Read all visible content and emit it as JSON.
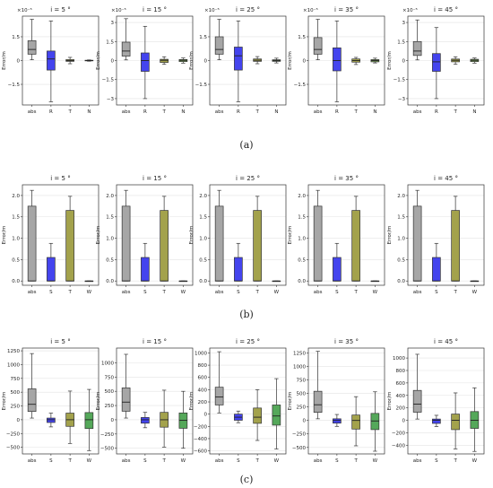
{
  "captions": [
    "(a)",
    "(b)",
    "(c)"
  ],
  "colors": {
    "abs": "#a6a6a6",
    "R": "#4444ee",
    "S": "#4444ee",
    "T": "#a3a24c",
    "N": "#7ea85a",
    "W": "#55a85a",
    "box_edge": "#333333",
    "median": "#222222",
    "grid": "#e3e3e3"
  },
  "chart_data": [
    {
      "type": "box",
      "panel": "a1",
      "title": "i = 5 °",
      "ylabel": "Error/m",
      "sci_label": "×10⁻⁵",
      "categories": [
        "abs",
        "R",
        "T",
        "N"
      ],
      "ylim": [
        -2.8,
        2.8
      ],
      "yticks": [
        -1.5,
        0,
        1.5
      ],
      "ytick_labels": [
        "−1.5",
        "0",
        "1.5"
      ],
      "boxes": [
        {
          "q1": 0.4,
          "median": 0.7,
          "q3": 1.25,
          "whislo": 0.05,
          "whishi": 2.6
        },
        {
          "q1": -0.6,
          "median": 0.1,
          "q3": 0.6,
          "whislo": -2.6,
          "whishi": 2.5
        },
        {
          "q1": -0.05,
          "median": 0.0,
          "q3": 0.06,
          "whislo": -0.2,
          "whishi": 0.2
        },
        {
          "q1": -0.02,
          "median": 0.0,
          "q3": 0.02,
          "whislo": -0.04,
          "whishi": 0.04
        }
      ]
    },
    {
      "type": "box",
      "panel": "a2",
      "title": "i = 15 °",
      "ylabel": "Error/m",
      "sci_label": "×10⁻⁵",
      "categories": [
        "abs",
        "R",
        "T",
        "N"
      ],
      "ylim": [
        -3.5,
        3.5
      ],
      "yticks": [
        -3,
        -1.5,
        0,
        1.5,
        3
      ],
      "ytick_labels": [
        "−3",
        "−1.5",
        "0",
        "1.5",
        "3"
      ],
      "boxes": [
        {
          "q1": 0.35,
          "median": 0.75,
          "q3": 1.45,
          "whislo": 0.05,
          "whishi": 3.3
        },
        {
          "q1": -0.85,
          "median": 0.0,
          "q3": 0.6,
          "whislo": -3.0,
          "whishi": 2.7
        },
        {
          "q1": -0.15,
          "median": 0.02,
          "q3": 0.1,
          "whislo": -0.3,
          "whishi": 0.3
        },
        {
          "q1": -0.08,
          "median": 0.02,
          "q3": 0.08,
          "whislo": -0.2,
          "whishi": 0.2
        }
      ]
    },
    {
      "type": "box",
      "panel": "a3",
      "title": "i = 25 °",
      "ylabel": "Error/m",
      "sci_label": "×10⁻⁵",
      "categories": [
        "abs",
        "R",
        "T",
        "N"
      ],
      "ylim": [
        -2.8,
        2.8
      ],
      "yticks": [
        -1.5,
        0,
        1.5
      ],
      "ytick_labels": [
        "−1.5",
        "0",
        "1.5"
      ],
      "boxes": [
        {
          "q1": 0.4,
          "median": 0.7,
          "q3": 1.5,
          "whislo": 0.05,
          "whishi": 2.6
        },
        {
          "q1": -0.6,
          "median": 0.3,
          "q3": 0.85,
          "whislo": -2.6,
          "whishi": 2.5
        },
        {
          "q1": -0.05,
          "median": 0.02,
          "q3": 0.1,
          "whislo": -0.2,
          "whishi": 0.25
        },
        {
          "q1": -0.05,
          "median": 0.0,
          "q3": 0.05,
          "whislo": -0.15,
          "whishi": 0.15
        }
      ]
    },
    {
      "type": "box",
      "panel": "a4",
      "title": "i = 35 °",
      "ylabel": "Error/m",
      "sci_label": "×10⁻⁵",
      "categories": [
        "abs",
        "R",
        "T",
        "N"
      ],
      "ylim": [
        -2.8,
        2.8
      ],
      "yticks": [
        -1.5,
        0,
        1.5
      ],
      "ytick_labels": [
        "−1.5",
        "0",
        "1.5"
      ],
      "boxes": [
        {
          "q1": 0.4,
          "median": 0.7,
          "q3": 1.45,
          "whislo": 0.05,
          "whishi": 2.6
        },
        {
          "q1": -0.65,
          "median": 0.0,
          "q3": 0.8,
          "whislo": -2.6,
          "whishi": 2.5
        },
        {
          "q1": -0.1,
          "median": 0.0,
          "q3": 0.1,
          "whislo": -0.25,
          "whishi": 0.2
        },
        {
          "q1": -0.08,
          "median": 0.0,
          "q3": 0.06,
          "whislo": -0.15,
          "whishi": 0.15
        }
      ]
    },
    {
      "type": "box",
      "panel": "a5",
      "title": "i = 45 °",
      "ylabel": "Error/m",
      "sci_label": "×10⁻⁵",
      "categories": [
        "abs",
        "R",
        "T",
        "N"
      ],
      "ylim": [
        -3.5,
        3.5
      ],
      "yticks": [
        -3,
        -1.5,
        0,
        1.5,
        3
      ],
      "ytick_labels": [
        "−3",
        "−1.5",
        "0",
        "1.5",
        "3"
      ],
      "boxes": [
        {
          "q1": 0.4,
          "median": 0.75,
          "q3": 1.5,
          "whislo": 0.05,
          "whishi": 3.2
        },
        {
          "q1": -0.85,
          "median": -0.1,
          "q3": 0.55,
          "whislo": -3.0,
          "whishi": 2.6
        },
        {
          "q1": -0.1,
          "median": 0.02,
          "q3": 0.12,
          "whislo": -0.3,
          "whishi": 0.3
        },
        {
          "q1": -0.08,
          "median": 0.02,
          "q3": 0.1,
          "whislo": -0.2,
          "whishi": 0.2
        }
      ]
    },
    {
      "type": "box",
      "panel": "b1",
      "title": "i = 5 °",
      "ylabel": "Error/m",
      "categories": [
        "abs",
        "S",
        "T",
        "W"
      ],
      "ylim": [
        -0.1,
        2.25
      ],
      "yticks": [
        0,
        0.5,
        1,
        1.5,
        2
      ],
      "ytick_labels": [
        "0.0",
        "0.5",
        "1.0",
        "1.5",
        "2.0"
      ],
      "boxes": [
        {
          "q1": 0.0,
          "median": 0.0,
          "q3": 1.75,
          "whislo": 0.0,
          "whishi": 2.12
        },
        {
          "q1": 0.0,
          "median": 0.0,
          "q3": 0.55,
          "whislo": 0.0,
          "whishi": 0.88
        },
        {
          "q1": 0.0,
          "median": 0.0,
          "q3": 1.65,
          "whislo": 0.0,
          "whishi": 1.98
        },
        {
          "q1": 0.0,
          "median": 0.0,
          "q3": 0.0,
          "whislo": 0.0,
          "whishi": 0.0
        }
      ]
    },
    {
      "type": "box",
      "panel": "b2",
      "title": "i = 15 °",
      "ylabel": "Error/m",
      "categories": [
        "abs",
        "S",
        "T",
        "W"
      ],
      "ylim": [
        -0.1,
        2.25
      ],
      "yticks": [
        0,
        0.5,
        1,
        1.5,
        2
      ],
      "ytick_labels": [
        "0.0",
        "0.5",
        "1.0",
        "1.5",
        "2.0"
      ],
      "boxes": [
        {
          "q1": 0.0,
          "median": 0.0,
          "q3": 1.75,
          "whislo": 0.0,
          "whishi": 2.12
        },
        {
          "q1": 0.0,
          "median": 0.0,
          "q3": 0.55,
          "whislo": 0.0,
          "whishi": 0.88
        },
        {
          "q1": 0.0,
          "median": 0.0,
          "q3": 1.65,
          "whislo": 0.0,
          "whishi": 1.98
        },
        {
          "q1": 0.0,
          "median": 0.0,
          "q3": 0.0,
          "whislo": 0.0,
          "whishi": 0.0
        }
      ]
    },
    {
      "type": "box",
      "panel": "b3",
      "title": "i = 25 °",
      "ylabel": "Error/m",
      "categories": [
        "abs",
        "S",
        "T",
        "W"
      ],
      "ylim": [
        -0.1,
        2.25
      ],
      "yticks": [
        0,
        0.5,
        1,
        1.5,
        2
      ],
      "ytick_labels": [
        "0.0",
        "0.5",
        "1.0",
        "1.5",
        "2.0"
      ],
      "boxes": [
        {
          "q1": 0.0,
          "median": 0.0,
          "q3": 1.75,
          "whislo": 0.0,
          "whishi": 2.12
        },
        {
          "q1": 0.0,
          "median": 0.0,
          "q3": 0.55,
          "whislo": 0.0,
          "whishi": 0.88
        },
        {
          "q1": 0.0,
          "median": 0.0,
          "q3": 1.65,
          "whislo": 0.0,
          "whishi": 1.98
        },
        {
          "q1": 0.0,
          "median": 0.0,
          "q3": 0.0,
          "whislo": 0.0,
          "whishi": 0.0
        }
      ]
    },
    {
      "type": "box",
      "panel": "b4",
      "title": "i = 35 °",
      "ylabel": "Error/m",
      "categories": [
        "abs",
        "S",
        "T",
        "W"
      ],
      "ylim": [
        -0.1,
        2.25
      ],
      "yticks": [
        0,
        0.5,
        1,
        1.5,
        2
      ],
      "ytick_labels": [
        "0.0",
        "0.5",
        "1.0",
        "1.5",
        "2.0"
      ],
      "boxes": [
        {
          "q1": 0.0,
          "median": 0.0,
          "q3": 1.75,
          "whislo": 0.0,
          "whishi": 2.12
        },
        {
          "q1": 0.0,
          "median": 0.0,
          "q3": 0.55,
          "whislo": 0.0,
          "whishi": 0.88
        },
        {
          "q1": 0.0,
          "median": 0.0,
          "q3": 1.65,
          "whislo": 0.0,
          "whishi": 1.98
        },
        {
          "q1": 0.0,
          "median": 0.0,
          "q3": 0.0,
          "whislo": 0.0,
          "whishi": 0.0
        }
      ]
    },
    {
      "type": "box",
      "panel": "b5",
      "title": "i = 45 °",
      "ylabel": "Error/m",
      "categories": [
        "abs",
        "S",
        "T",
        "W"
      ],
      "ylim": [
        -0.1,
        2.25
      ],
      "yticks": [
        0,
        0.5,
        1,
        1.5,
        2
      ],
      "ytick_labels": [
        "0.0",
        "0.5",
        "1.0",
        "1.5",
        "2.0"
      ],
      "boxes": [
        {
          "q1": 0.0,
          "median": 0.0,
          "q3": 1.75,
          "whislo": 0.0,
          "whishi": 2.12
        },
        {
          "q1": 0.0,
          "median": 0.0,
          "q3": 0.55,
          "whislo": 0.0,
          "whishi": 0.88
        },
        {
          "q1": 0.0,
          "median": 0.0,
          "q3": 1.65,
          "whislo": 0.0,
          "whishi": 1.98
        },
        {
          "q1": 0.0,
          "median": 0.0,
          "q3": 0.0,
          "whislo": 0.0,
          "whishi": 0.0
        }
      ]
    },
    {
      "type": "box",
      "panel": "c1",
      "title": "i = 5 °",
      "ylabel": "Error/m",
      "categories": [
        "abs",
        "S",
        "T",
        "W"
      ],
      "ylim": [
        -620,
        1300
      ],
      "yticks": [
        -500,
        -250,
        0,
        250,
        500,
        750,
        1000,
        1250
      ],
      "ytick_labels": [
        "−500",
        "−250",
        "0",
        "250",
        "500",
        "750",
        "1000",
        "1250"
      ],
      "boxes": [
        {
          "q1": 150,
          "median": 280,
          "q3": 560,
          "whislo": 30,
          "whishi": 1200
        },
        {
          "q1": -50,
          "median": 0,
          "q3": 30,
          "whislo": -130,
          "whishi": 120
        },
        {
          "q1": -120,
          "median": 0,
          "q3": 120,
          "whislo": -430,
          "whishi": 520
        },
        {
          "q1": -160,
          "median": 0,
          "q3": 130,
          "whislo": -560,
          "whishi": 550
        }
      ]
    },
    {
      "type": "box",
      "panel": "c2",
      "title": "i = 15 °",
      "ylabel": "Error/m",
      "categories": [
        "abs",
        "S",
        "T",
        "W"
      ],
      "ylim": [
        -600,
        1260
      ],
      "yticks": [
        -500,
        -250,
        0,
        250,
        500,
        750,
        1000
      ],
      "ytick_labels": [
        "−500",
        "−250",
        "0",
        "250",
        "500",
        "750",
        "1000"
      ],
      "boxes": [
        {
          "q1": 150,
          "median": 310,
          "q3": 560,
          "whislo": 30,
          "whishi": 1150
        },
        {
          "q1": -60,
          "median": 0,
          "q3": 40,
          "whislo": -140,
          "whishi": 130
        },
        {
          "q1": -130,
          "median": 0,
          "q3": 130,
          "whislo": -480,
          "whishi": 520
        },
        {
          "q1": -150,
          "median": -10,
          "q3": 120,
          "whislo": -500,
          "whishi": 500
        }
      ]
    },
    {
      "type": "box",
      "panel": "c3",
      "title": "i = 25 °",
      "ylabel": "Error/m",
      "categories": [
        "abs",
        "S",
        "T",
        "W"
      ],
      "ylim": [
        -650,
        1080
      ],
      "yticks": [
        -600,
        -400,
        -200,
        0,
        200,
        400,
        600,
        800,
        1000
      ],
      "ytick_labels": [
        "−600",
        "−400",
        "−200",
        "0",
        "200",
        "400",
        "600",
        "800",
        "1000"
      ],
      "boxes": [
        {
          "q1": 150,
          "median": 280,
          "q3": 440,
          "whislo": 20,
          "whishi": 1020
        },
        {
          "q1": -100,
          "median": -50,
          "q3": 0,
          "whislo": -140,
          "whishi": 50
        },
        {
          "q1": -150,
          "median": -50,
          "q3": 100,
          "whislo": -430,
          "whishi": 400
        },
        {
          "q1": -180,
          "median": -30,
          "q3": 150,
          "whislo": -570,
          "whishi": 580
        }
      ]
    },
    {
      "type": "box",
      "panel": "c4",
      "title": "i = 35 °",
      "ylabel": "Error/m",
      "categories": [
        "abs",
        "S",
        "T",
        "W"
      ],
      "ylim": [
        -620,
        1340
      ],
      "yticks": [
        -500,
        -250,
        0,
        250,
        500,
        750,
        1000,
        1250
      ],
      "ytick_labels": [
        "−500",
        "−250",
        "0",
        "250",
        "500",
        "750",
        "1000",
        "1250"
      ],
      "boxes": [
        {
          "q1": 150,
          "median": 290,
          "q3": 540,
          "whislo": 30,
          "whishi": 1280
        },
        {
          "q1": -50,
          "median": 0,
          "q3": 30,
          "whislo": -110,
          "whishi": 110
        },
        {
          "q1": -160,
          "median": 0,
          "q3": 100,
          "whislo": -470,
          "whishi": 440
        },
        {
          "q1": -170,
          "median": -10,
          "q3": 130,
          "whislo": -570,
          "whishi": 530
        }
      ]
    },
    {
      "type": "box",
      "panel": "c5",
      "title": "i = 45 °",
      "ylabel": "Error/m",
      "categories": [
        "abs",
        "S",
        "T",
        "W"
      ],
      "ylim": [
        -540,
        1160
      ],
      "yticks": [
        -400,
        -200,
        0,
        200,
        400,
        600,
        800,
        1000
      ],
      "ytick_labels": [
        "−400",
        "−200",
        "0",
        "200",
        "400",
        "600",
        "800",
        "1000"
      ],
      "boxes": [
        {
          "q1": 130,
          "median": 260,
          "q3": 480,
          "whislo": 20,
          "whishi": 1060
        },
        {
          "q1": -50,
          "median": 0,
          "q3": 20,
          "whislo": -100,
          "whishi": 80
        },
        {
          "q1": -150,
          "median": 0,
          "q3": 100,
          "whislo": -460,
          "whishi": 440
        },
        {
          "q1": -130,
          "median": 0,
          "q3": 140,
          "whislo": -500,
          "whishi": 520
        }
      ]
    }
  ]
}
